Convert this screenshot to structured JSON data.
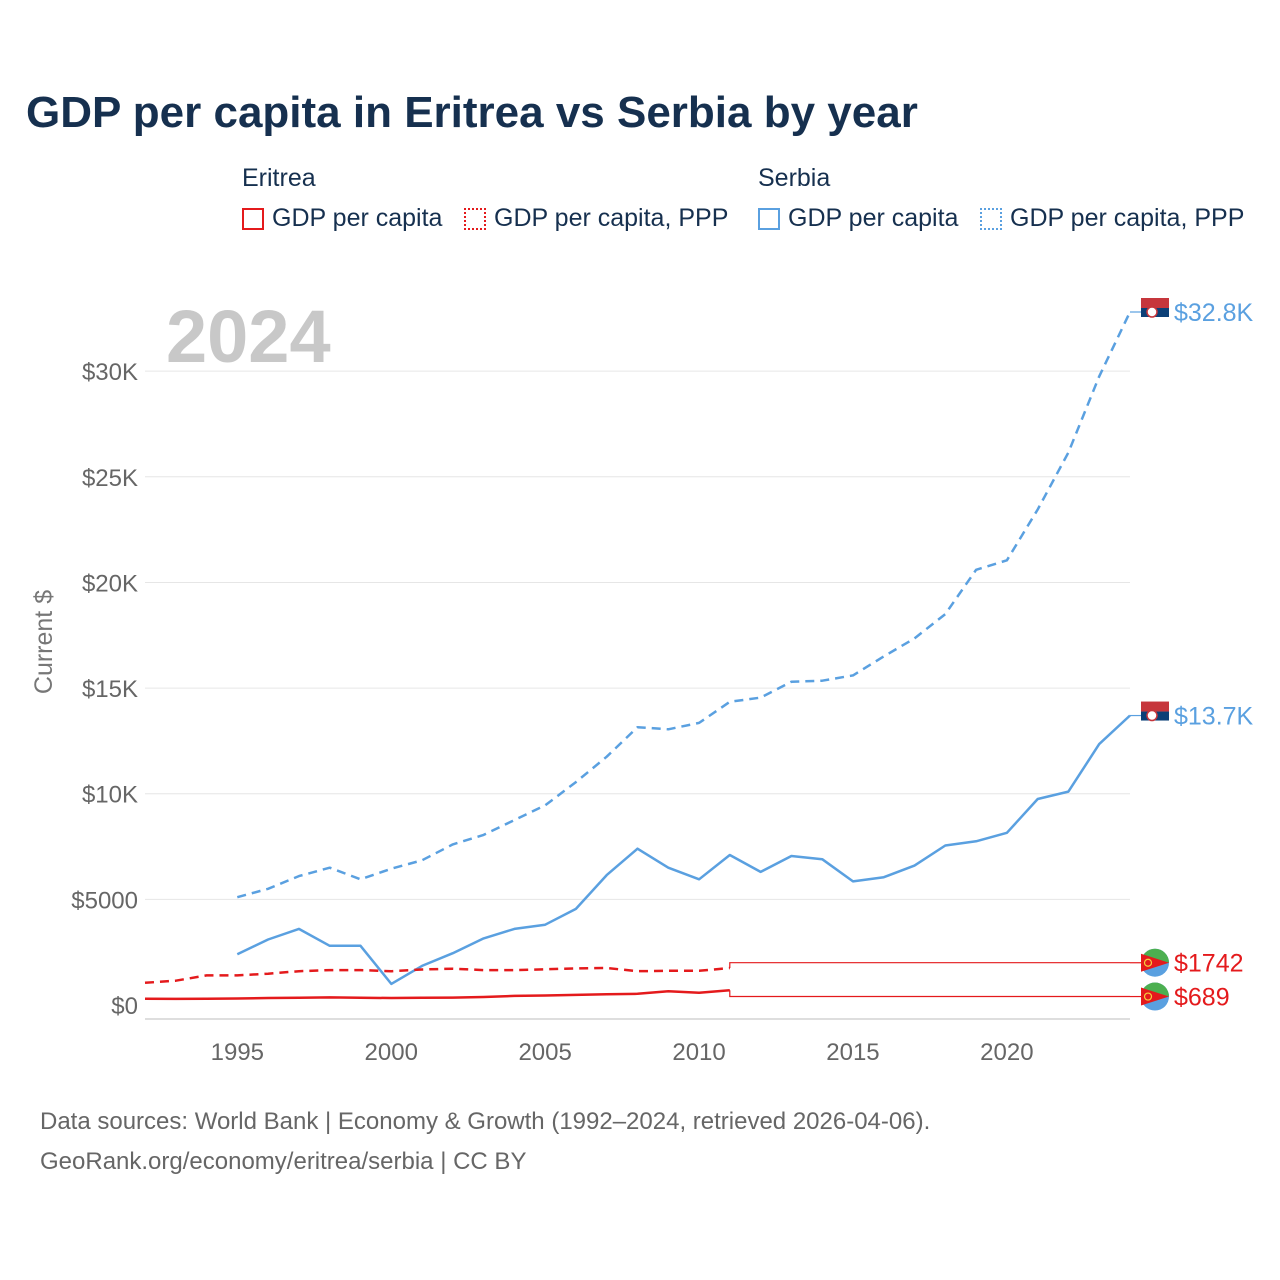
{
  "chart_data": {
    "type": "line",
    "title": "GDP per capita in Eritrea vs Serbia by year",
    "ylabel": "Current $",
    "xlabel": "",
    "year_watermark": "2024",
    "xlim": [
      1992,
      2024
    ],
    "ylim": [
      0,
      32800
    ],
    "x_ticks": [
      1995,
      2000,
      2005,
      2010,
      2015,
      2020
    ],
    "x_tick_labels": [
      "1995",
      "2000",
      "2005",
      "2010",
      "2015",
      "2020"
    ],
    "y_ticks": [
      0,
      5000,
      10000,
      15000,
      20000,
      25000,
      30000
    ],
    "y_tick_labels": [
      "$0",
      "$5000",
      "$10K",
      "$15K",
      "$20K",
      "$25K",
      "$30K"
    ],
    "legend": {
      "groups": [
        {
          "country": "Eritrea",
          "color": "#e41a1c",
          "items": [
            "GDP per capita",
            "GDP per capita, PPP"
          ]
        },
        {
          "country": "Serbia",
          "color": "#5aa0e0",
          "items": [
            "GDP per capita",
            "GDP per capita, PPP"
          ]
        }
      ]
    },
    "series": [
      {
        "name": "Serbia GDP per capita, PPP",
        "country": "Serbia",
        "color": "#5aa0e0",
        "dash": true,
        "end_label": "$32.8K",
        "points": [
          [
            1995,
            5100
          ],
          [
            1996,
            5500
          ],
          [
            1997,
            6100
          ],
          [
            1998,
            6500
          ],
          [
            1999,
            5950
          ],
          [
            2000,
            6450
          ],
          [
            2001,
            6850
          ],
          [
            2002,
            7600
          ],
          [
            2003,
            8050
          ],
          [
            2004,
            8750
          ],
          [
            2005,
            9450
          ],
          [
            2006,
            10550
          ],
          [
            2007,
            11750
          ],
          [
            2008,
            13150
          ],
          [
            2009,
            13050
          ],
          [
            2010,
            13350
          ],
          [
            2011,
            14350
          ],
          [
            2012,
            14550
          ],
          [
            2013,
            15300
          ],
          [
            2014,
            15350
          ],
          [
            2015,
            15600
          ],
          [
            2016,
            16500
          ],
          [
            2017,
            17350
          ],
          [
            2018,
            18500
          ],
          [
            2019,
            20600
          ],
          [
            2020,
            21050
          ],
          [
            2021,
            23450
          ],
          [
            2022,
            26150
          ],
          [
            2023,
            29750
          ],
          [
            2024,
            32800
          ]
        ]
      },
      {
        "name": "Serbia GDP per capita",
        "country": "Serbia",
        "color": "#5aa0e0",
        "dash": false,
        "end_label": "$13.7K",
        "points": [
          [
            1995,
            2400
          ],
          [
            1996,
            3100
          ],
          [
            1997,
            3600
          ],
          [
            1998,
            2800
          ],
          [
            1999,
            2800
          ],
          [
            2000,
            1000
          ],
          [
            2001,
            1850
          ],
          [
            2002,
            2450
          ],
          [
            2003,
            3150
          ],
          [
            2004,
            3600
          ],
          [
            2005,
            3800
          ],
          [
            2006,
            4550
          ],
          [
            2007,
            6150
          ],
          [
            2008,
            7400
          ],
          [
            2009,
            6500
          ],
          [
            2010,
            5950
          ],
          [
            2011,
            7100
          ],
          [
            2012,
            6300
          ],
          [
            2013,
            7050
          ],
          [
            2014,
            6900
          ],
          [
            2015,
            5850
          ],
          [
            2016,
            6050
          ],
          [
            2017,
            6600
          ],
          [
            2018,
            7550
          ],
          [
            2019,
            7750
          ],
          [
            2020,
            8150
          ],
          [
            2021,
            9750
          ],
          [
            2022,
            10100
          ],
          [
            2023,
            12350
          ],
          [
            2024,
            13700
          ]
        ]
      },
      {
        "name": "Eritrea GDP per capita, PPP",
        "country": "Eritrea",
        "color": "#e41a1c",
        "dash": true,
        "end_label": "$1742",
        "points": [
          [
            1992,
            1050
          ],
          [
            1993,
            1150
          ],
          [
            1994,
            1400
          ],
          [
            1995,
            1400
          ],
          [
            1996,
            1480
          ],
          [
            1997,
            1600
          ],
          [
            1998,
            1650
          ],
          [
            1999,
            1650
          ],
          [
            2000,
            1600
          ],
          [
            2001,
            1680
          ],
          [
            2002,
            1720
          ],
          [
            2003,
            1650
          ],
          [
            2004,
            1650
          ],
          [
            2005,
            1690
          ],
          [
            2006,
            1730
          ],
          [
            2007,
            1750
          ],
          [
            2008,
            1600
          ],
          [
            2009,
            1620
          ],
          [
            2010,
            1620
          ],
          [
            2011,
            1750
          ]
        ],
        "carry_forward": [
          [
            2011,
            2000
          ],
          [
            2024,
            2000
          ]
        ]
      },
      {
        "name": "Eritrea GDP per capita",
        "country": "Eritrea",
        "color": "#e41a1c",
        "dash": false,
        "end_label": "$689",
        "points": [
          [
            1992,
            300
          ],
          [
            1993,
            290
          ],
          [
            1994,
            300
          ],
          [
            1995,
            310
          ],
          [
            1996,
            330
          ],
          [
            1997,
            340
          ],
          [
            1998,
            360
          ],
          [
            1999,
            340
          ],
          [
            2000,
            330
          ],
          [
            2001,
            340
          ],
          [
            2002,
            350
          ],
          [
            2003,
            380
          ],
          [
            2004,
            430
          ],
          [
            2005,
            450
          ],
          [
            2006,
            480
          ],
          [
            2007,
            510
          ],
          [
            2008,
            530
          ],
          [
            2009,
            650
          ],
          [
            2010,
            580
          ],
          [
            2011,
            700
          ]
        ],
        "carry_forward": [
          [
            2011,
            400
          ],
          [
            2024,
            400
          ]
        ]
      }
    ]
  },
  "footer": {
    "line1": "Data sources: World Bank | Economy & Growth (1992–2024, retrieved 2026-04-06).",
    "line2": "GeoRank.org/economy/eritrea/serbia | CC BY"
  }
}
